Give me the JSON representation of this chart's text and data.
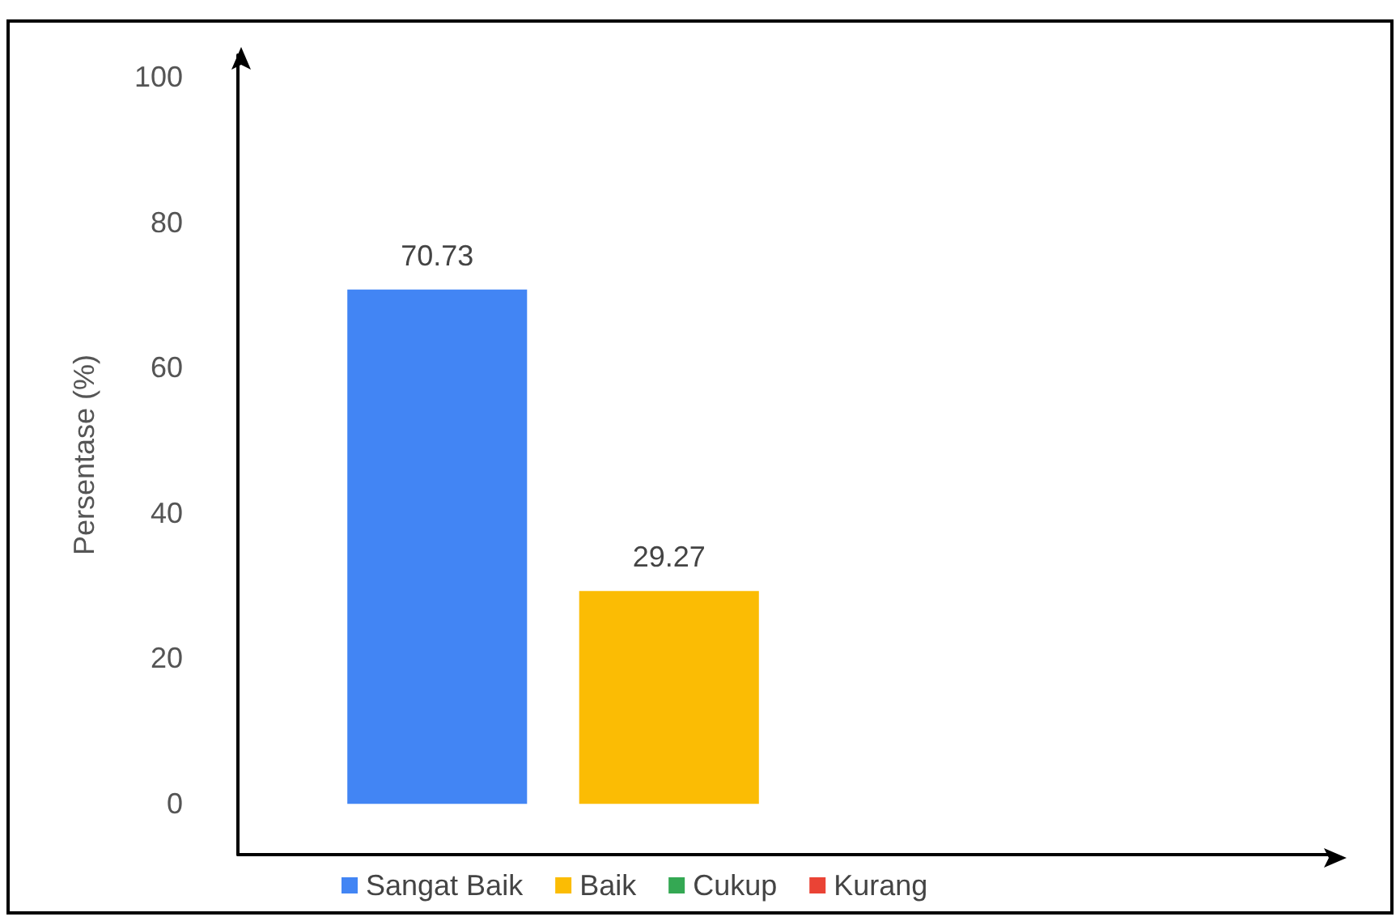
{
  "chart_data": {
    "type": "bar",
    "ylabel": "Persentase (%)",
    "categories": [
      null
    ],
    "series": [
      {
        "name": "Sangat Baik",
        "color": "#4285f4",
        "values": [
          70.73
        ],
        "value_labels": [
          "70.73"
        ]
      },
      {
        "name": "Baik",
        "color": "#fbbc04",
        "values": [
          29.27
        ],
        "value_labels": [
          "29.27"
        ]
      },
      {
        "name": "Cukup",
        "color": "#34a853",
        "values": [
          0
        ],
        "value_labels": [
          null
        ]
      },
      {
        "name": "Kurang",
        "color": "#ea4335",
        "values": [
          0
        ],
        "value_labels": [
          null
        ]
      }
    ],
    "ylim": [
      -7,
      103
    ],
    "yticks": [
      0,
      20,
      40,
      60,
      80,
      100
    ],
    "grid": false,
    "legend": "bottom"
  }
}
